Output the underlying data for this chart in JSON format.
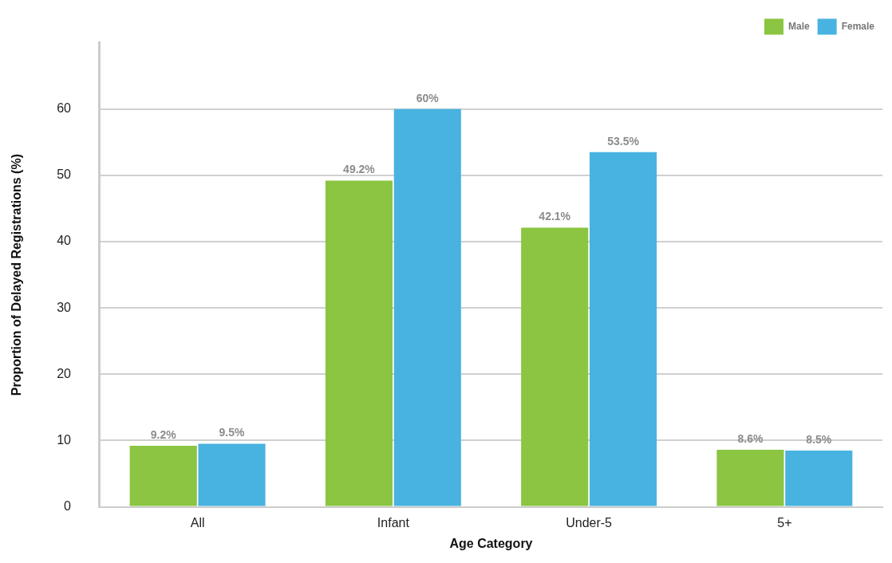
{
  "chart_data": {
    "type": "bar",
    "xlabel": "Age Category",
    "ylabel": "Proportion of Delayed Registrations (%)",
    "categories": [
      "All",
      "Infant",
      "Under-5",
      "5+"
    ],
    "series": [
      {
        "name": "Male",
        "color": "#8bc541",
        "values": [
          9.2,
          49.2,
          42.1,
          8.6
        ],
        "value_labels": [
          "9.2%",
          "49.2%",
          "42.1%",
          "8.6%"
        ]
      },
      {
        "name": "Female",
        "color": "#48b3e0",
        "values": [
          9.5,
          60,
          53.5,
          8.5
        ],
        "value_labels": [
          "9.5%",
          "60%",
          "53.5%",
          "8.5%"
        ]
      }
    ],
    "ylim": [
      0,
      70
    ],
    "yticks": [
      0,
      10,
      20,
      30,
      40,
      50,
      60
    ],
    "grid": "y",
    "legend": "top right"
  }
}
